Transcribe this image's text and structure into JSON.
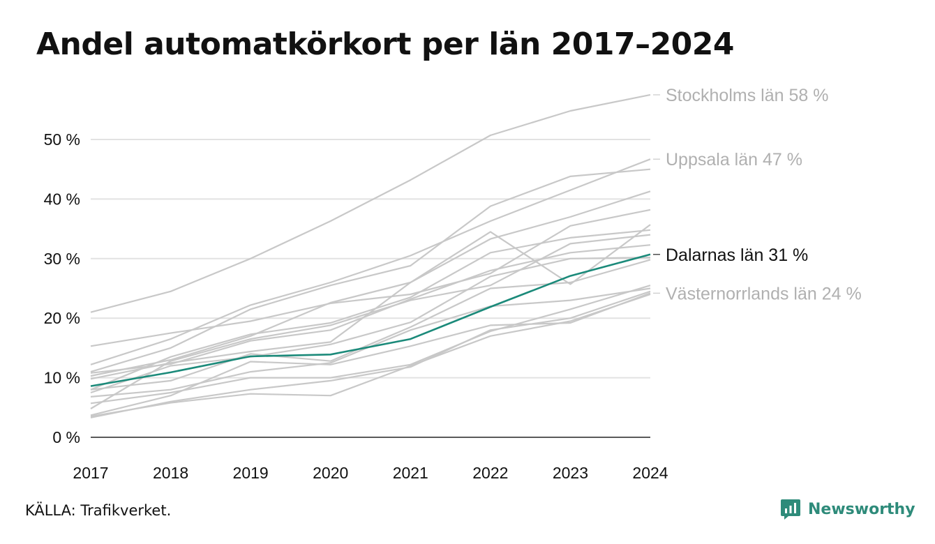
{
  "title": "Andel automatkörkort per län 2017–2024",
  "source": "KÄLLA: Trafikverket.",
  "brand": {
    "name": "Newsworthy",
    "icon": "newsworthy-logo-icon",
    "color": "#2e8b7a"
  },
  "chart_data": {
    "type": "line",
    "title": "Andel automatkörkort per län 2017–2024",
    "xlabel": "",
    "ylabel": "",
    "x": [
      "2017",
      "2018",
      "2019",
      "2020",
      "2021",
      "2022",
      "2023",
      "2024"
    ],
    "ylim": [
      0,
      58
    ],
    "yticks": [
      0,
      10,
      20,
      30,
      40,
      50
    ],
    "ytick_labels": [
      "0 %",
      "10 %",
      "20 %",
      "30 %",
      "40 %",
      "50 %"
    ],
    "grid": true,
    "highlight_color": "#1b8a7a",
    "background_color": "#c8c8c8",
    "labels_color": "#b0b0b0",
    "series": [
      {
        "name": "Stockholms län",
        "end_label": "Stockholms län 58 %",
        "highlight": false,
        "label_color": "#b0b0b0",
        "values": [
          21.0,
          24.5,
          30.0,
          36.3,
          43.2,
          50.7,
          54.8,
          57.5
        ]
      },
      {
        "name": "Uppsala län",
        "end_label": "Uppsala län 47 %",
        "highlight": false,
        "label_color": "#b0b0b0",
        "values": [
          12.2,
          16.5,
          22.2,
          26.0,
          30.5,
          36.3,
          41.5,
          46.7
        ]
      },
      {
        "name": "Dalarnas län",
        "end_label": "Dalarnas län 31 %",
        "highlight": true,
        "label_color": "#111111",
        "values": [
          8.6,
          10.9,
          13.6,
          13.9,
          16.5,
          21.9,
          27.1,
          30.7
        ]
      },
      {
        "name": "Västernorrlands län",
        "end_label": "Västernorrlands län 24 %",
        "highlight": false,
        "label_color": "#b0b0b0",
        "values": [
          3.7,
          7.0,
          12.7,
          12.2,
          15.3,
          18.8,
          19.2,
          24.2
        ]
      },
      {
        "name": "",
        "highlight": false,
        "values": [
          11.0,
          15.0,
          21.5,
          25.5,
          28.8,
          38.8,
          43.8,
          45.0
        ]
      },
      {
        "name": "",
        "highlight": false,
        "values": [
          10.3,
          13.0,
          17.0,
          22.6,
          26.0,
          33.3,
          37.0,
          41.3
        ]
      },
      {
        "name": "",
        "highlight": false,
        "values": [
          15.3,
          17.5,
          19.5,
          22.5,
          24.0,
          27.5,
          35.5,
          38.2
        ]
      },
      {
        "name": "",
        "highlight": false,
        "values": [
          9.8,
          12.5,
          14.4,
          16.0,
          26.0,
          34.5,
          25.7,
          35.7
        ]
      },
      {
        "name": "",
        "highlight": false,
        "values": [
          8.0,
          13.5,
          17.3,
          19.2,
          23.5,
          31.0,
          33.5,
          34.8
        ]
      },
      {
        "name": "",
        "highlight": false,
        "values": [
          4.8,
          12.8,
          16.5,
          18.8,
          23.0,
          25.5,
          32.5,
          34.0
        ]
      },
      {
        "name": "",
        "highlight": false,
        "values": [
          10.8,
          12.3,
          16.2,
          18.0,
          23.2,
          28.0,
          31.0,
          32.3
        ]
      },
      {
        "name": "",
        "highlight": false,
        "values": [
          7.5,
          12.0,
          13.5,
          15.6,
          19.3,
          27.0,
          30.0,
          30.2
        ]
      },
      {
        "name": "",
        "highlight": false,
        "values": [
          8.0,
          9.5,
          14.0,
          12.8,
          18.5,
          25.0,
          26.0,
          29.8
        ]
      },
      {
        "name": "",
        "highlight": false,
        "values": [
          6.8,
          8.0,
          11.0,
          12.5,
          18.0,
          22.0,
          23.0,
          25.0
        ]
      },
      {
        "name": "",
        "highlight": false,
        "values": [
          5.7,
          7.5,
          10.0,
          10.0,
          12.2,
          17.8,
          21.5,
          25.5
        ]
      },
      {
        "name": "",
        "highlight": false,
        "values": [
          3.3,
          6.0,
          8.0,
          9.5,
          11.8,
          18.0,
          20.0,
          24.5
        ]
      },
      {
        "name": "",
        "highlight": false,
        "values": [
          3.5,
          5.8,
          7.3,
          7.0,
          12.0,
          17.0,
          19.5,
          24.0
        ]
      }
    ]
  }
}
